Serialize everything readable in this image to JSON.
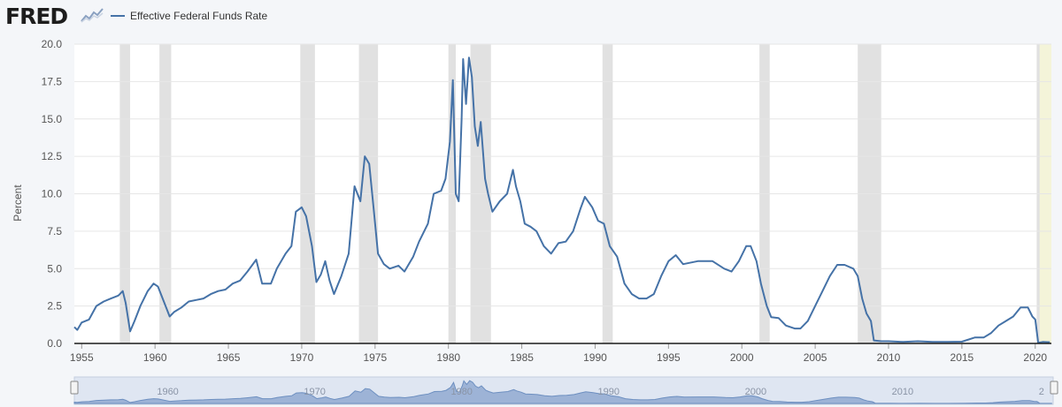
{
  "header": {
    "logo_text": "FRED",
    "logo_graph_icon": "trend-graph-icon"
  },
  "legend": {
    "series_label": "Effective Federal Funds Rate",
    "color": "#4572a7"
  },
  "chart_data": {
    "type": "line",
    "title": "",
    "xlabel": "",
    "ylabel": "Percent",
    "ylim": [
      0,
      20
    ],
    "xlim": [
      1954.5,
      2021.1
    ],
    "y_ticks": [
      "0.0",
      "2.5",
      "5.0",
      "7.5",
      "10.0",
      "12.5",
      "15.0",
      "17.5",
      "20.0"
    ],
    "x_ticks": [
      "1955",
      "1960",
      "1965",
      "1970",
      "1975",
      "1980",
      "1985",
      "1990",
      "1995",
      "2000",
      "2005",
      "2010",
      "2015",
      "2020"
    ],
    "grid": true,
    "legend_position": "top-left",
    "line_color": "#4572a7",
    "recession_color": "#e1e1e1",
    "recessions": [
      [
        1957.6,
        1958.3
      ],
      [
        1960.3,
        1961.1
      ],
      [
        1969.9,
        1970.9
      ],
      [
        1973.9,
        1975.2
      ],
      [
        1980.0,
        1980.5
      ],
      [
        1981.5,
        1982.9
      ],
      [
        1990.5,
        1991.2
      ],
      [
        2001.2,
        2001.9
      ],
      [
        2007.9,
        2009.5
      ],
      [
        2020.1,
        2020.3
      ]
    ],
    "highlight_band": [
      2020.1,
      2021.1
    ],
    "highlight_color": "#f4f4d9",
    "series": [
      {
        "name": "Effective Federal Funds Rate",
        "x": [
          1954.5,
          1954.7,
          1955.0,
          1955.5,
          1956.0,
          1956.5,
          1957.0,
          1957.5,
          1957.8,
          1958.0,
          1958.3,
          1958.6,
          1959.0,
          1959.5,
          1959.9,
          1960.2,
          1960.6,
          1961.0,
          1961.3,
          1961.8,
          1962.3,
          1962.8,
          1963.3,
          1963.8,
          1964.3,
          1964.8,
          1965.3,
          1965.8,
          1966.3,
          1966.9,
          1967.3,
          1967.9,
          1968.3,
          1968.9,
          1969.3,
          1969.6,
          1970.0,
          1970.3,
          1970.7,
          1971.0,
          1971.3,
          1971.6,
          1971.9,
          1972.2,
          1972.7,
          1973.2,
          1973.6,
          1974.0,
          1974.3,
          1974.6,
          1974.9,
          1975.2,
          1975.6,
          1976.0,
          1976.6,
          1977.0,
          1977.6,
          1978.0,
          1978.6,
          1979.0,
          1979.5,
          1979.8,
          1980.1,
          1980.3,
          1980.5,
          1980.7,
          1980.9,
          1981.0,
          1981.2,
          1981.4,
          1981.6,
          1981.8,
          1982.0,
          1982.2,
          1982.5,
          1982.7,
          1983.0,
          1983.5,
          1984.0,
          1984.4,
          1984.6,
          1984.9,
          1985.2,
          1985.6,
          1986.0,
          1986.5,
          1987.0,
          1987.5,
          1988.0,
          1988.5,
          1989.0,
          1989.3,
          1989.8,
          1990.2,
          1990.6,
          1991.0,
          1991.5,
          1992.0,
          1992.5,
          1993.0,
          1993.5,
          1994.0,
          1994.5,
          1995.0,
          1995.5,
          1996.0,
          1997.0,
          1998.0,
          1998.8,
          1999.3,
          1999.8,
          2000.3,
          2000.6,
          2001.0,
          2001.3,
          2001.7,
          2002.0,
          2002.5,
          2003.0,
          2003.6,
          2004.0,
          2004.5,
          2005.0,
          2005.5,
          2006.0,
          2006.5,
          2007.0,
          2007.6,
          2007.9,
          2008.2,
          2008.5,
          2008.8,
          2009.0,
          2009.5,
          2010.0,
          2011.0,
          2012.0,
          2013.0,
          2014.0,
          2015.0,
          2015.9,
          2016.5,
          2017.0,
          2017.5,
          2018.0,
          2018.5,
          2019.0,
          2019.5,
          2019.8,
          2020.0,
          2020.2,
          2020.5,
          2021.0
        ],
        "y": [
          1.1,
          0.9,
          1.4,
          1.6,
          2.5,
          2.8,
          3.0,
          3.2,
          3.5,
          2.7,
          0.8,
          1.5,
          2.5,
          3.5,
          4.0,
          3.8,
          2.8,
          1.8,
          2.1,
          2.4,
          2.8,
          2.9,
          3.0,
          3.3,
          3.5,
          3.6,
          4.0,
          4.2,
          4.8,
          5.6,
          4.0,
          4.0,
          5.0,
          6.0,
          6.5,
          8.8,
          9.1,
          8.5,
          6.5,
          4.1,
          4.6,
          5.5,
          4.2,
          3.3,
          4.5,
          6.0,
          10.5,
          9.5,
          12.5,
          12.0,
          9.0,
          6.0,
          5.3,
          5.0,
          5.2,
          4.8,
          5.8,
          6.8,
          8.0,
          10.0,
          10.2,
          11.0,
          13.5,
          17.6,
          10.0,
          9.5,
          15.0,
          19.0,
          16.0,
          19.1,
          17.8,
          14.5,
          13.2,
          14.8,
          11.0,
          10.0,
          8.8,
          9.5,
          10.0,
          11.6,
          10.5,
          9.5,
          8.0,
          7.8,
          7.5,
          6.5,
          6.0,
          6.7,
          6.8,
          7.5,
          9.0,
          9.8,
          9.1,
          8.2,
          8.0,
          6.5,
          5.8,
          4.0,
          3.3,
          3.0,
          3.0,
          3.3,
          4.5,
          5.5,
          5.9,
          5.3,
          5.5,
          5.5,
          5.0,
          4.8,
          5.5,
          6.5,
          6.5,
          5.5,
          4.0,
          2.5,
          1.75,
          1.7,
          1.2,
          1.0,
          1.0,
          1.5,
          2.5,
          3.5,
          4.5,
          5.25,
          5.25,
          5.0,
          4.5,
          3.0,
          2.0,
          1.5,
          0.2,
          0.15,
          0.15,
          0.1,
          0.15,
          0.1,
          0.1,
          0.12,
          0.4,
          0.4,
          0.7,
          1.2,
          1.5,
          1.8,
          2.4,
          2.4,
          1.8,
          1.6,
          0.05,
          0.1,
          0.08
        ]
      }
    ]
  },
  "navigator": {
    "labels": [
      "1960",
      "1970",
      "1980",
      "1990",
      "2000",
      "2010",
      "2"
    ]
  }
}
